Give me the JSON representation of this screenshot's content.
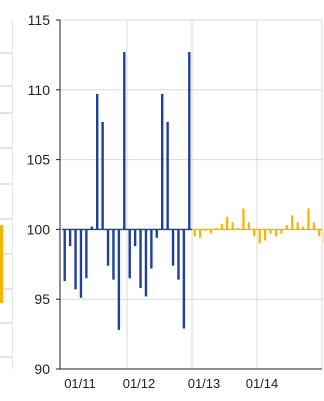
{
  "colors": {
    "series_blue": "#1f3f99",
    "series_yellow": "#f5b400",
    "grid": "#d9d9d9",
    "axis": "#222222",
    "left_panel_grid": "#c8c8c8"
  },
  "chart_data": {
    "type": "bar",
    "title": "",
    "xlabel": "",
    "ylabel": "",
    "baseline": 100,
    "ylim": [
      90,
      115
    ],
    "y_ticks": [
      90,
      95,
      100,
      105,
      110,
      115
    ],
    "x_ticks": [
      "01/11",
      "01/12",
      "01/13",
      "01/14"
    ],
    "x_range_months": [
      0,
      48
    ],
    "grid": true,
    "legend": "none",
    "series": [
      {
        "values": [
          96.3,
          98.8,
          95.7,
          95.1,
          96.5,
          100.2,
          109.7,
          107.7,
          97.4,
          96.4,
          92.8,
          112.7,
          96.5,
          98.8,
          95.8,
          95.2,
          97.2,
          99.4,
          109.7,
          107.7,
          97.4,
          96.4,
          92.9,
          112.7
        ]
      },
      {
        "values": [
          99.5,
          99.4,
          99.9,
          99.7,
          100.1,
          100.4,
          100.9,
          100.5,
          100.1,
          101.5,
          100.5,
          99.5,
          99.0,
          99.2,
          99.7,
          99.5,
          99.7,
          100.3,
          101.0,
          100.5,
          100.2,
          101.5,
          100.5,
          99.5,
          99.0
        ]
      }
    ]
  }
}
